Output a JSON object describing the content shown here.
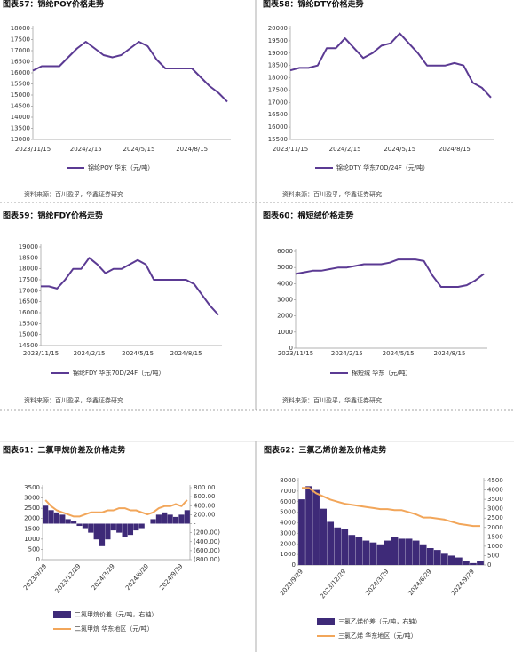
{
  "chart_data": [
    {
      "type": "line",
      "figure_title": "图表57：锦纶POY价格走势",
      "source": "资料来源：百川盈孚，华鑫证券研究",
      "categories": [
        "2023/11/15",
        null,
        null,
        null,
        null,
        null,
        "2024/2/15",
        null,
        null,
        null,
        null,
        null,
        "2024/5/15",
        null,
        null,
        null,
        null,
        null,
        "2024/8/15",
        null,
        null,
        null,
        null
      ],
      "series": [
        {
          "name": "锦纶POY 华东（元/吨）",
          "color": "#5b3a93",
          "values": [
            16100,
            16300,
            16300,
            16300,
            16700,
            17100,
            17400,
            17100,
            16800,
            16700,
            16800,
            17100,
            17400,
            17200,
            16600,
            16200,
            16200,
            16200,
            16200,
            15800,
            15400,
            15100,
            14700
          ]
        }
      ],
      "ylim": [
        13000,
        18000
      ],
      "yticks": [
        13000,
        13500,
        14000,
        14500,
        15000,
        15500,
        16000,
        16500,
        17000,
        17500,
        18000
      ]
    },
    {
      "type": "line",
      "figure_title": "图表58：锦纶DTY价格走势",
      "source": "资料来源：百川盈孚，华鑫证券研究",
      "categories": [
        "2023/11/15",
        null,
        null,
        null,
        null,
        null,
        "2024/2/15",
        null,
        null,
        null,
        null,
        null,
        "2024/5/15",
        null,
        null,
        null,
        null,
        null,
        "2024/8/15",
        null,
        null,
        null,
        null
      ],
      "series": [
        {
          "name": "锦纶DTY 华东70D/24F（元/吨）",
          "color": "#5b3a93",
          "values": [
            18300,
            18400,
            18400,
            18500,
            19200,
            19200,
            19600,
            19200,
            18800,
            19000,
            19300,
            19400,
            19800,
            19400,
            19000,
            18500,
            18500,
            18500,
            18600,
            18500,
            17800,
            17600,
            17200
          ]
        }
      ],
      "ylim": [
        15500,
        20000
      ],
      "yticks": [
        15500,
        16000,
        16500,
        17000,
        17500,
        18000,
        18500,
        19000,
        19500,
        20000
      ]
    },
    {
      "type": "line",
      "figure_title": "图表59：锦纶FDY价格走势",
      "source": "资料来源：百川盈孚，华鑫证券研究",
      "categories": [
        "2023/11/15",
        null,
        null,
        null,
        null,
        null,
        "2024/2/15",
        null,
        null,
        null,
        null,
        null,
        "2024/5/15",
        null,
        null,
        null,
        null,
        null,
        "2024/8/15",
        null,
        null,
        null,
        null
      ],
      "series": [
        {
          "name": "锦纶FDY 华东70D/24F（元/吨）",
          "color": "#5b3a93",
          "values": [
            17200,
            17200,
            17100,
            17500,
            18000,
            18000,
            18500,
            18200,
            17800,
            18000,
            18000,
            18200,
            18400,
            18200,
            17500,
            17500,
            17500,
            17500,
            17500,
            17300,
            16800,
            16300,
            15900
          ]
        }
      ],
      "ylim": [
        14500,
        19000
      ],
      "yticks": [
        14500,
        15000,
        15500,
        16000,
        16500,
        17000,
        17500,
        18000,
        18500,
        19000
      ]
    },
    {
      "type": "line",
      "figure_title": "图表60：棉短绒价格走势",
      "source": "资料来源：百川盈孚，华鑫证券研究",
      "categories": [
        "2023/11/15",
        null,
        null,
        null,
        null,
        null,
        "2024/2/15",
        null,
        null,
        null,
        null,
        null,
        "2024/5/15",
        null,
        null,
        null,
        null,
        null,
        "2024/8/15",
        null,
        null,
        null,
        null
      ],
      "series": [
        {
          "name": "棉短绒 华东（元/吨）",
          "color": "#5b3a93",
          "values": [
            4600,
            4700,
            4800,
            4800,
            4900,
            5000,
            5000,
            5100,
            5200,
            5200,
            5200,
            5300,
            5500,
            5500,
            5500,
            5400,
            4500,
            3800,
            3800,
            3800,
            3900,
            4200,
            4600
          ]
        }
      ],
      "ylim": [
        0,
        6000
      ],
      "yticks": [
        0,
        1000,
        2000,
        3000,
        4000,
        5000,
        6000
      ]
    },
    {
      "type": "combo",
      "figure_title": "图表61：二氯甲烷价差及价格走势",
      "categories": [
        "2023/9/29",
        null,
        null,
        null,
        null,
        null,
        "2023/12/29",
        null,
        null,
        null,
        null,
        null,
        "2024/3/29",
        null,
        null,
        null,
        null,
        null,
        "2024/6/29",
        null,
        null,
        null,
        null,
        null,
        "2024/9/29",
        null
      ],
      "series": [
        {
          "name": "二氯甲烷价差（元/吨，右轴）",
          "type": "bar",
          "axis": "y2",
          "color": "#3e2a78",
          "values": [
            400,
            300,
            250,
            200,
            100,
            50,
            -50,
            -100,
            -200,
            -350,
            -500,
            -350,
            -150,
            -200,
            -300,
            -250,
            -150,
            -100,
            0,
            100,
            200,
            250,
            200,
            150,
            200,
            300
          ]
        },
        {
          "name": "二氯甲烷 华东地区（元/吨）",
          "type": "line",
          "color": "#f2a65a",
          "values": [
            2900,
            2600,
            2400,
            2300,
            2200,
            2100,
            2100,
            2200,
            2300,
            2300,
            2300,
            2400,
            2400,
            2500,
            2500,
            2400,
            2400,
            2300,
            2200,
            2300,
            2500,
            2600,
            2600,
            2700,
            2600,
            2900
          ]
        }
      ],
      "ylim": [
        0,
        3500
      ],
      "yticks": [
        0,
        500,
        1000,
        1500,
        2000,
        2500,
        3000,
        3500
      ],
      "y2lim": [
        -800,
        800
      ],
      "y2ticks": [
        {
          "value": -800,
          "label": "(800.00)"
        },
        {
          "value": -600,
          "label": "(600.00)"
        },
        {
          "value": -400,
          "label": "(400.00)"
        },
        {
          "value": -200,
          "label": "(200.00)"
        },
        {
          "value": 0,
          "label": "-"
        },
        {
          "value": 200,
          "label": "200.00"
        },
        {
          "value": 400,
          "label": "400.00"
        },
        {
          "value": 600,
          "label": "600.00"
        },
        {
          "value": 800,
          "label": "800.00"
        }
      ]
    },
    {
      "type": "combo",
      "figure_title": "图表62：三氯乙烯价差及价格走势",
      "categories": [
        "2023/9/29",
        null,
        null,
        null,
        null,
        null,
        "2023/12/29",
        null,
        null,
        null,
        null,
        null,
        "2024/3/29",
        null,
        null,
        null,
        null,
        null,
        "2024/6/29",
        null,
        null,
        null,
        null,
        null,
        "2024/9/29",
        null
      ],
      "series": [
        {
          "name": "三氯乙烯价差（元/吨，右轴）",
          "type": "bar",
          "axis": "y2",
          "color": "#3e2a78",
          "values": [
            3500,
            4200,
            4000,
            3000,
            2300,
            2000,
            1900,
            1600,
            1500,
            1300,
            1200,
            1100,
            1300,
            1500,
            1400,
            1400,
            1300,
            1100,
            900,
            800,
            600,
            500,
            400,
            200,
            100,
            200
          ]
        },
        {
          "name": "三氯乙烯 华东地区（元/吨）",
          "type": "line",
          "color": "#f2a65a",
          "values": [
            7300,
            7300,
            6800,
            6500,
            6200,
            6000,
            5800,
            5700,
            5600,
            5500,
            5400,
            5300,
            5300,
            5200,
            5200,
            5000,
            4800,
            4500,
            4500,
            4400,
            4300,
            4100,
            3900,
            3800,
            3700,
            3700
          ]
        }
      ],
      "ylim": [
        0,
        8000
      ],
      "yticks": [
        0,
        1000,
        2000,
        3000,
        4000,
        5000,
        6000,
        7000,
        8000
      ],
      "y2lim": [
        0,
        4500
      ],
      "y2ticks": [
        0,
        500,
        1000,
        1500,
        2000,
        2500,
        3000,
        3500,
        4000,
        4500
      ]
    }
  ]
}
